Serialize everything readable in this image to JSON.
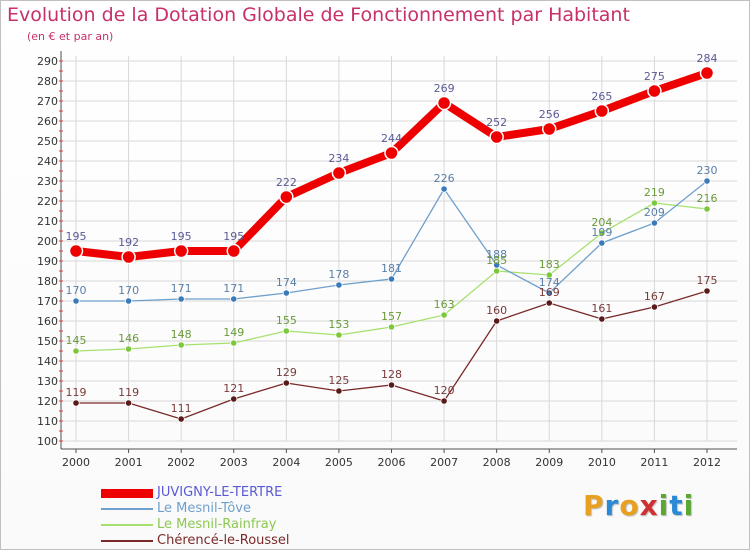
{
  "header": {
    "title": "Evolution de la Dotation Globale de Fonctionnement par Habitant",
    "subtitle": "(en € et par an)"
  },
  "logo": {
    "text": "Proxiti",
    "letter_colors": [
      "#e8a020",
      "#2b8ad6",
      "#e8a020",
      "#d03030",
      "#5aa832",
      "#2b8ad6",
      "#5aa832"
    ]
  },
  "colors": {
    "title": "#c8306a",
    "axis": "#505050",
    "grid": "#d8d8d8",
    "tick_label": "#333333"
  },
  "chart_data": {
    "type": "line",
    "x": [
      "2000",
      "2001",
      "2002",
      "2003",
      "2004",
      "2005",
      "2006",
      "2007",
      "2008",
      "2009",
      "2010",
      "2011",
      "2012"
    ],
    "ylim": [
      100,
      290
    ],
    "yticks": [
      100,
      110,
      120,
      130,
      140,
      150,
      160,
      170,
      180,
      190,
      200,
      210,
      220,
      230,
      240,
      250,
      260,
      270,
      280,
      290
    ],
    "grid": true,
    "legend": "bottom-left",
    "series": [
      {
        "name": "JUVIGNY-LE-TERTRE",
        "color": "#ee0000",
        "label_color": "#5a5a96",
        "bold": true,
        "values": [
          195,
          192,
          195,
          195,
          222,
          234,
          244,
          269,
          252,
          256,
          265,
          275,
          284
        ]
      },
      {
        "name": "Le Mesnil-Tôve",
        "color": "#6fa0cc",
        "marker_color": "#3a7ab8",
        "label_color": "#5a7fa8",
        "bold": false,
        "values": [
          170,
          170,
          171,
          171,
          174,
          178,
          181,
          226,
          188,
          174,
          199,
          209,
          230
        ]
      },
      {
        "name": "Le Mesnil-Rainfray",
        "color": "#a8e070",
        "marker_color": "#7cc83c",
        "label_color": "#6a9a3a",
        "bold": false,
        "values": [
          145,
          146,
          148,
          149,
          155,
          153,
          157,
          163,
          185,
          183,
          204,
          219,
          216
        ]
      },
      {
        "name": "Chérencé-le-Roussel",
        "color": "#7a2a2a",
        "marker_color": "#5a1a1a",
        "label_color": "#7a3a3a",
        "bold": false,
        "values": [
          119,
          119,
          111,
          121,
          129,
          125,
          128,
          120,
          160,
          169,
          161,
          167,
          175
        ]
      }
    ]
  }
}
